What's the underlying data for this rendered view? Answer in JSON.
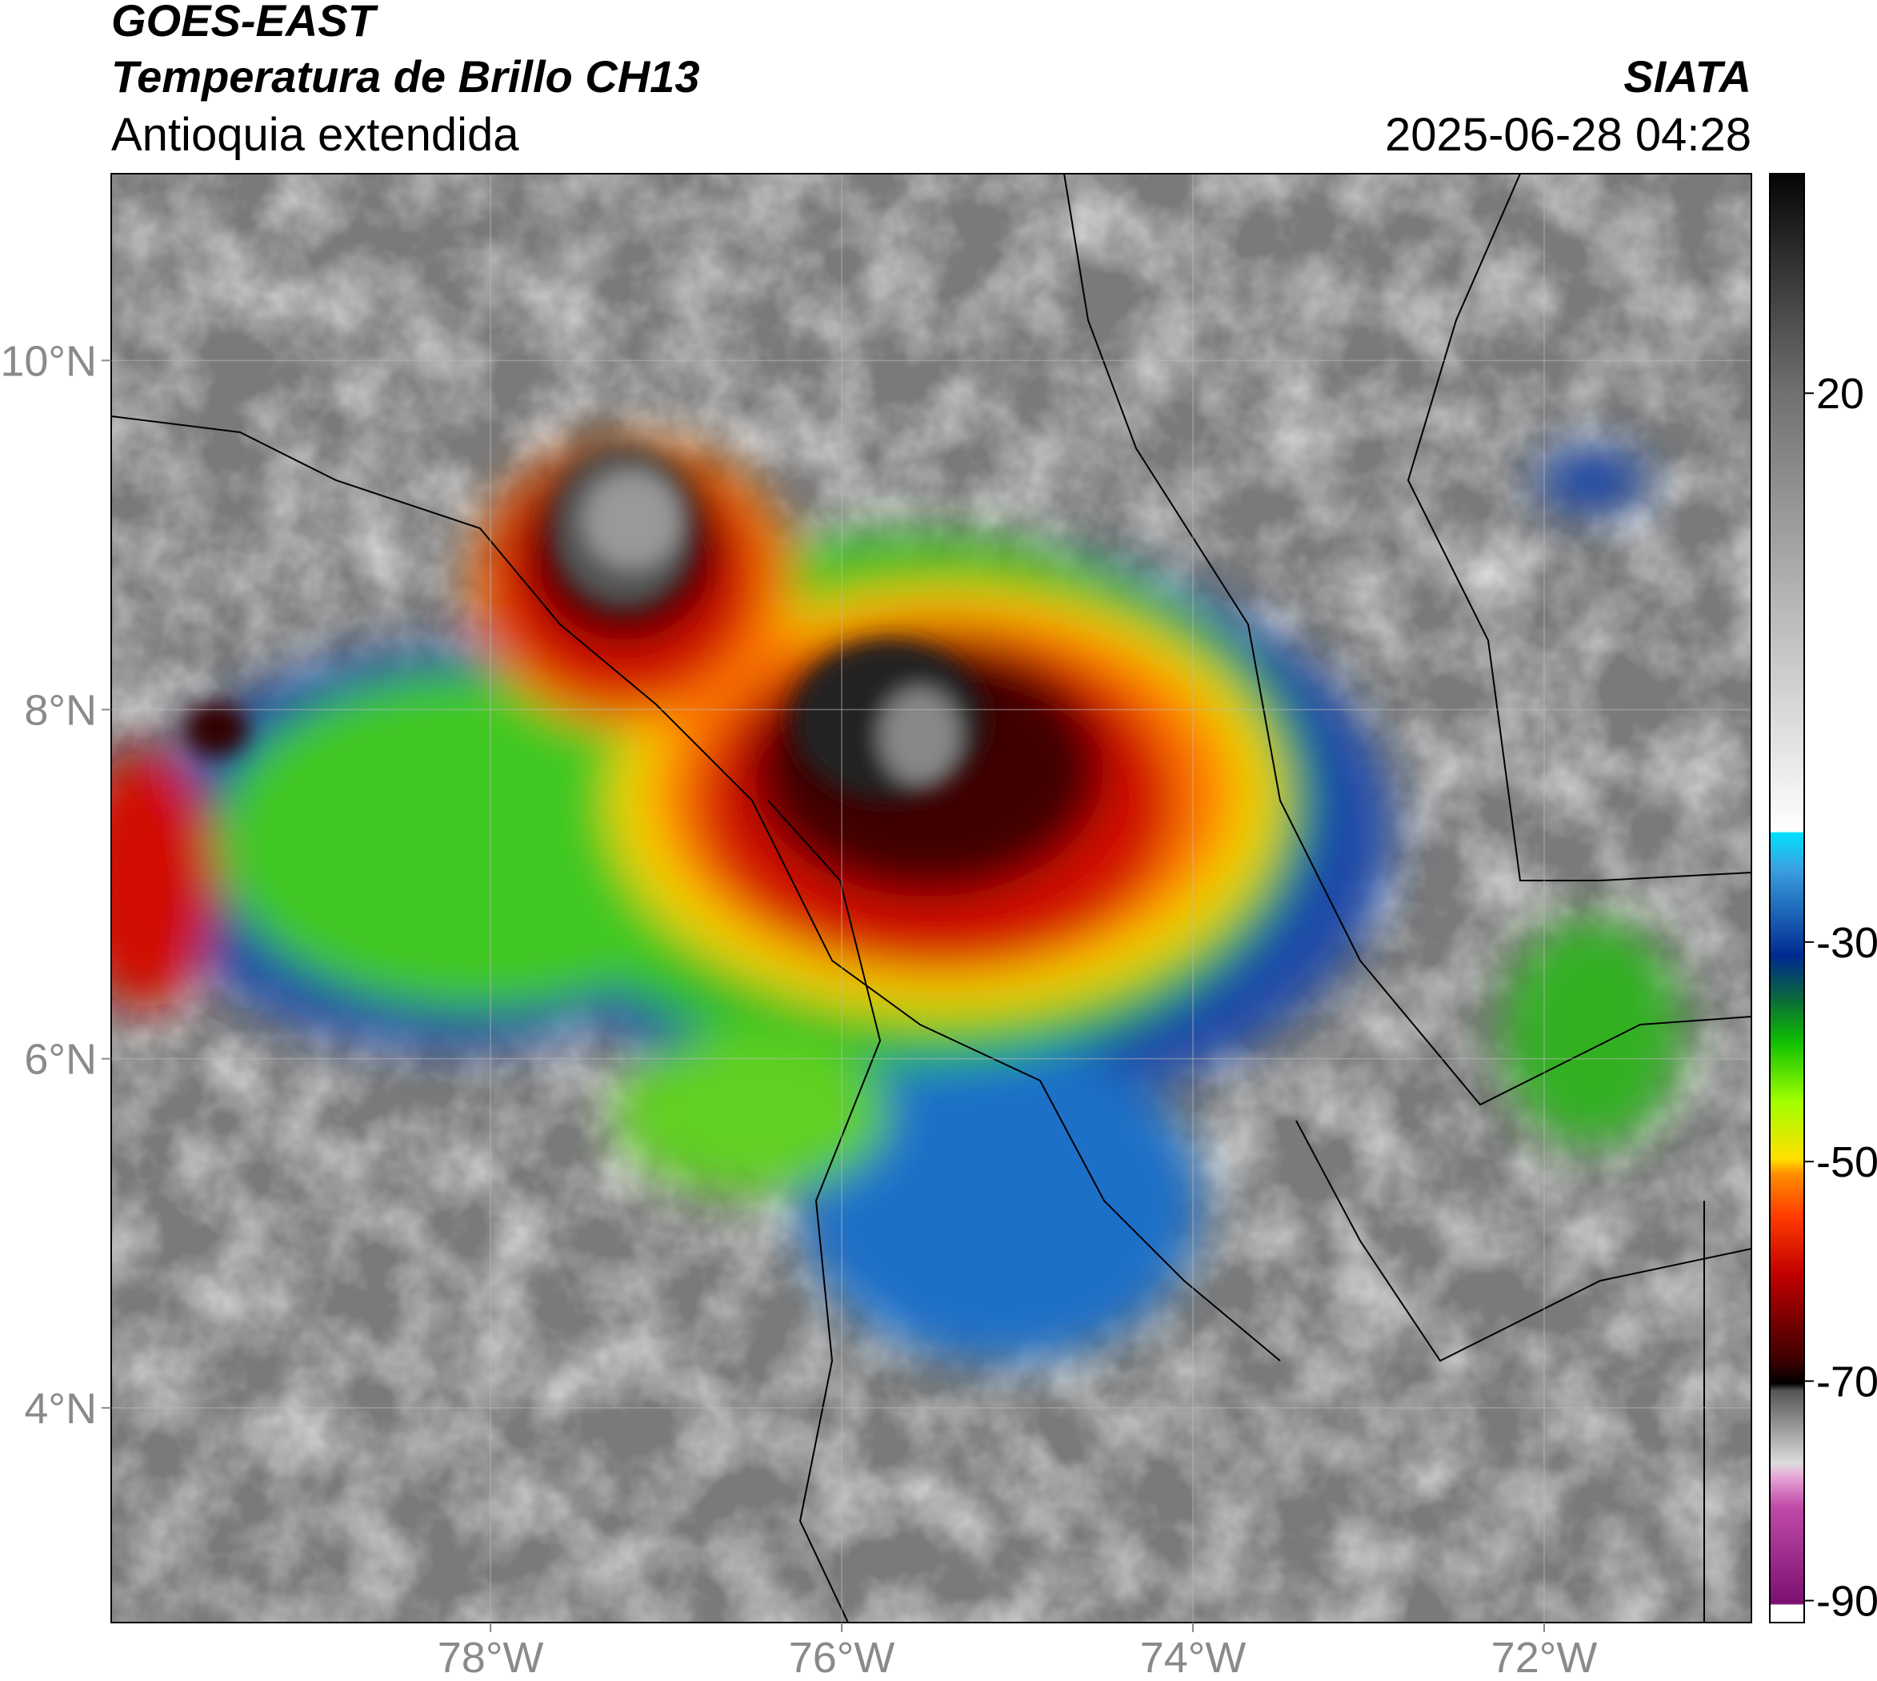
{
  "header": {
    "title": "GOES-EAST",
    "subtitle": "Temperatura de Brillo CH13",
    "region": "Antioquia extendida",
    "source": "SIATA",
    "datetime": "2025-06-28 04:28"
  },
  "map": {
    "lon_range": [
      -80.16,
      -70.82
    ],
    "lat_range": [
      2.77,
      11.07
    ],
    "lon_ticks": [
      {
        "value": -78,
        "label": "78°W"
      },
      {
        "value": -76,
        "label": "76°W"
      },
      {
        "value": -74,
        "label": "74°W"
      },
      {
        "value": -72,
        "label": "72°W"
      }
    ],
    "lat_ticks": [
      {
        "value": 4,
        "label": "4°N"
      },
      {
        "value": 6,
        "label": "6°N"
      },
      {
        "value": 8,
        "label": "8°N"
      },
      {
        "value": 10,
        "label": "10°N"
      }
    ]
  },
  "colorbar": {
    "range": [
      -92,
      40
    ],
    "ticks": [
      -90,
      -70,
      -50,
      -30,
      20
    ]
  }
}
